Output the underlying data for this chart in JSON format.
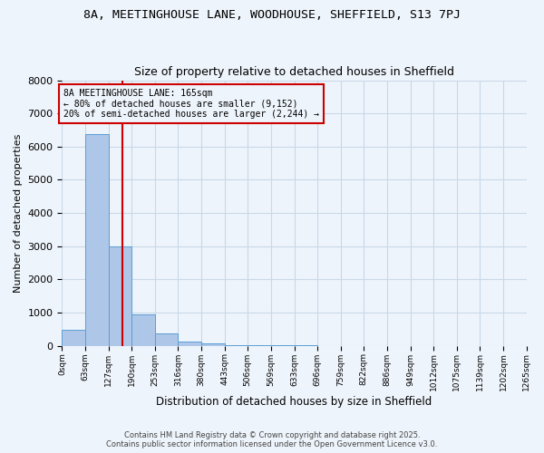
{
  "title": "8A, MEETINGHOUSE LANE, WOODHOUSE, SHEFFIELD, S13 7PJ",
  "subtitle": "Size of property relative to detached houses in Sheffield",
  "xlabel": "Distribution of detached houses by size in Sheffield",
  "ylabel": "Number of detached properties",
  "bin_labels": [
    "0sqm",
    "63sqm",
    "127sqm",
    "190sqm",
    "253sqm",
    "316sqm",
    "380sqm",
    "443sqm",
    "506sqm",
    "569sqm",
    "633sqm",
    "696sqm",
    "759sqm",
    "822sqm",
    "886sqm",
    "949sqm",
    "1012sqm",
    "1075sqm",
    "1139sqm",
    "1202sqm",
    "1265sqm"
  ],
  "bin_edges": [
    0,
    63,
    127,
    190,
    253,
    316,
    380,
    443,
    506,
    569,
    633,
    696,
    759,
    822,
    886,
    949,
    1012,
    1075,
    1139,
    1202,
    1265
  ],
  "bar_heights": [
    480,
    6380,
    2980,
    950,
    380,
    130,
    60,
    30,
    15,
    8,
    5,
    3,
    2,
    1,
    1,
    0,
    0,
    0,
    0,
    0
  ],
  "bar_color": "#aec6e8",
  "bar_edge_color": "#5a9fd4",
  "property_size": 165,
  "property_line_color": "#cc0000",
  "annotation_text": "8A MEETINGHOUSE LANE: 165sqm\n← 80% of detached houses are smaller (9,152)\n20% of semi-detached houses are larger (2,244) →",
  "annotation_box_color": "#cc0000",
  "ylim": [
    0,
    8000
  ],
  "yticks": [
    0,
    1000,
    2000,
    3000,
    4000,
    5000,
    6000,
    7000,
    8000
  ],
  "grid_color": "#c8d8e8",
  "background_color": "#eef4fb",
  "footer_line1": "Contains HM Land Registry data © Crown copyright and database right 2025.",
  "footer_line2": "Contains public sector information licensed under the Open Government Licence v3.0."
}
